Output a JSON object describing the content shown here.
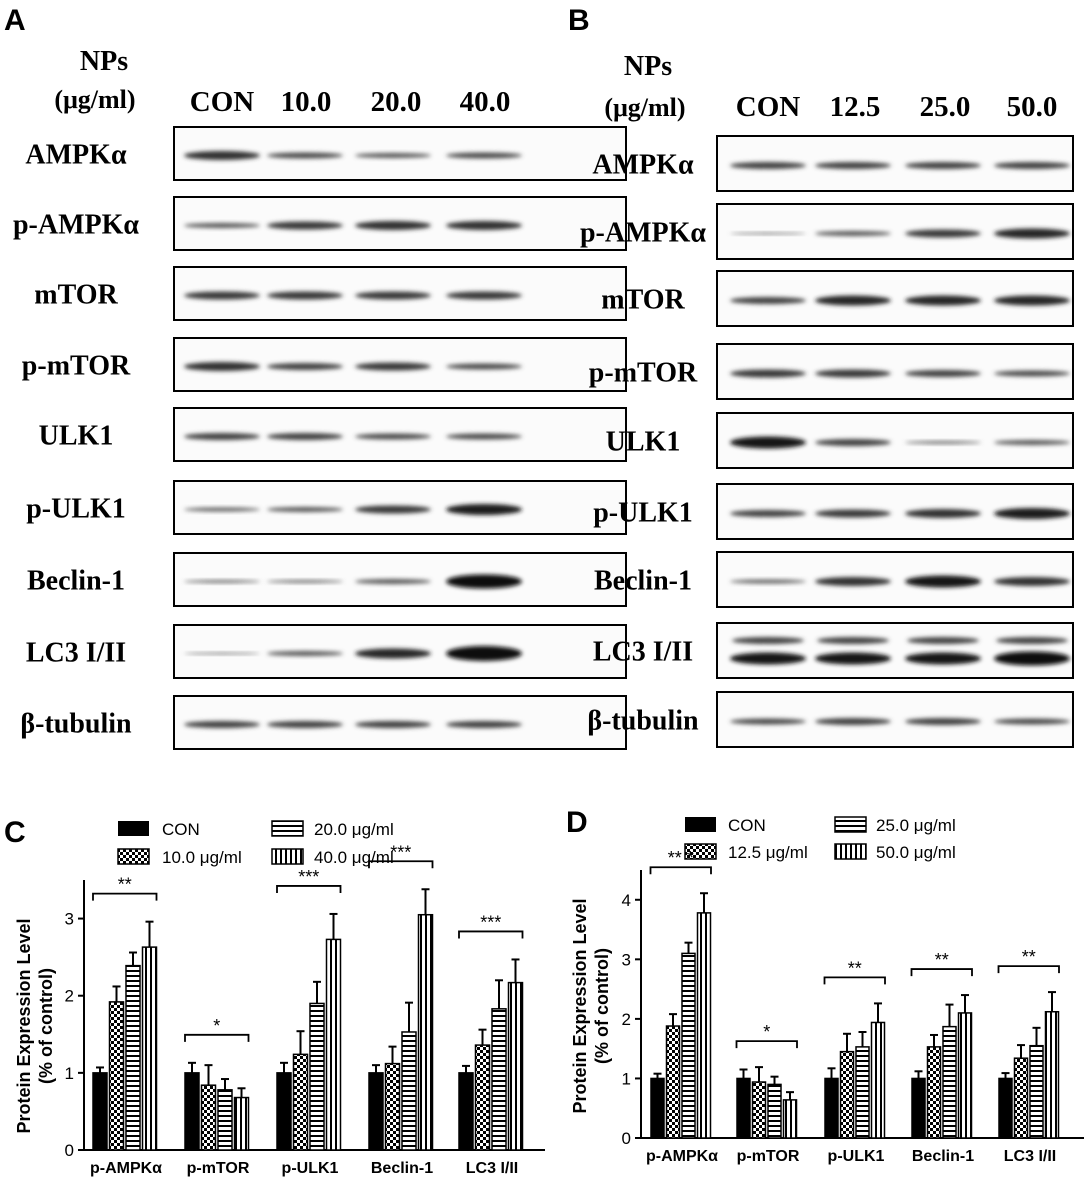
{
  "panels": {
    "A": {
      "letter": "A",
      "header_line1": "NPs",
      "header_line2": "(μg/ml)",
      "lanes": [
        "CON",
        "10.0",
        "20.0",
        "40.0"
      ],
      "rows": [
        "AMPKα",
        "p-AMPKα",
        "mTOR",
        "p-mTOR",
        "ULK1",
        "p-ULK1",
        "Beclin-1",
        "LC3 I/II",
        "β-tubulin"
      ]
    },
    "B": {
      "letter": "B",
      "header_line1": "NPs",
      "header_line2": "(μg/ml)",
      "lanes": [
        "CON",
        "12.5",
        "25.0",
        "50.0"
      ],
      "rows": [
        "AMPKα",
        "p-AMPKα",
        "mTOR",
        "p-mTOR",
        "ULK1",
        "p-ULK1",
        "Beclin-1",
        "LC3 I/II",
        "β-tubulin"
      ]
    }
  },
  "chart_data": [
    {
      "panel": "C",
      "type": "bar",
      "title": "",
      "xlabel": "",
      "ylabel": "Protein Expression Level\n(% of control)",
      "ylim": [
        0,
        3.5
      ],
      "yticks": [
        "0",
        "1",
        "2",
        "3"
      ],
      "categories": [
        "p-AMPKα",
        "p-mTOR",
        "p-ULK1",
        "Beclin-1",
        "LC3 I/II"
      ],
      "series": [
        {
          "name": "CON",
          "pattern": "solid",
          "values": [
            1.0,
            1.0,
            1.0,
            1.0,
            1.0
          ],
          "errors": [
            0.07,
            0.13,
            0.13,
            0.1,
            0.09
          ]
        },
        {
          "name": "10.0 μg/ml",
          "pattern": "checker",
          "values": [
            1.92,
            0.84,
            1.24,
            1.12,
            1.36
          ],
          "errors": [
            0.2,
            0.26,
            0.3,
            0.22,
            0.2
          ]
        },
        {
          "name": "20.0 μg/ml",
          "pattern": "hstripe",
          "values": [
            2.39,
            0.78,
            1.9,
            1.53,
            1.83
          ],
          "errors": [
            0.17,
            0.14,
            0.28,
            0.38,
            0.37
          ]
        },
        {
          "name": "40.0 μg/ml",
          "pattern": "vstripe",
          "values": [
            2.63,
            0.68,
            2.73,
            3.05,
            2.17
          ],
          "errors": [
            0.33,
            0.12,
            0.33,
            0.33,
            0.3
          ]
        }
      ],
      "significance": [
        "**",
        "*",
        "***",
        "***",
        "***"
      ]
    },
    {
      "panel": "D",
      "type": "bar",
      "title": "",
      "xlabel": "",
      "ylabel": "Protein Expression Level\n(% of control)",
      "ylim": [
        0,
        4.5
      ],
      "yticks": [
        "0",
        "1",
        "2",
        "3",
        "4"
      ],
      "categories": [
        "p-AMPKα",
        "p-mTOR",
        "p-ULK1",
        "Beclin-1",
        "LC3 I/II"
      ],
      "series": [
        {
          "name": "CON",
          "pattern": "solid",
          "values": [
            1.0,
            1.0,
            1.0,
            1.0,
            1.0
          ],
          "errors": [
            0.08,
            0.15,
            0.17,
            0.12,
            0.09
          ]
        },
        {
          "name": "12.5 μg/ml",
          "pattern": "checker",
          "values": [
            1.88,
            0.94,
            1.45,
            1.53,
            1.34
          ],
          "errors": [
            0.2,
            0.25,
            0.3,
            0.2,
            0.22
          ]
        },
        {
          "name": "25.0 μg/ml",
          "pattern": "hstripe",
          "values": [
            3.1,
            0.9,
            1.53,
            1.87,
            1.55
          ],
          "errors": [
            0.18,
            0.13,
            0.25,
            0.37,
            0.3
          ]
        },
        {
          "name": "50.0 μg/ml",
          "pattern": "vstripe",
          "values": [
            3.78,
            0.64,
            1.94,
            2.1,
            2.12
          ],
          "errors": [
            0.33,
            0.13,
            0.32,
            0.3,
            0.33
          ]
        }
      ],
      "significance": [
        "** *",
        "*",
        "**",
        "**",
        "**"
      ]
    }
  ]
}
